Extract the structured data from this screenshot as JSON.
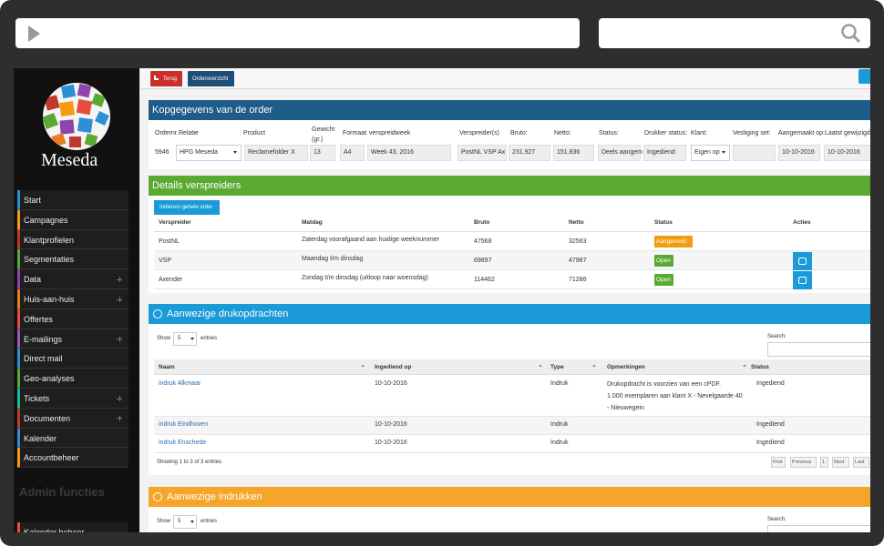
{
  "sidebar": {
    "logo": "Meseda",
    "menu": [
      {
        "label": "Start",
        "color": "#2d8fd5",
        "expandable": false
      },
      {
        "label": "Campagnes",
        "color": "#f39c12",
        "expandable": false
      },
      {
        "label": "Klantprofielen",
        "color": "#c0392b",
        "expandable": false
      },
      {
        "label": "Segmentaties",
        "color": "#5aaa32",
        "expandable": false
      },
      {
        "label": "Data",
        "color": "#8e44ad",
        "expandable": true
      },
      {
        "label": "Huis-aan-huis",
        "color": "#e67e22",
        "expandable": true
      },
      {
        "label": "Offertes",
        "color": "#e74c3c",
        "expandable": false
      },
      {
        "label": "E-mailings",
        "color": "#9b59b6",
        "expandable": true
      },
      {
        "label": "Direct mail",
        "color": "#2d8fd5",
        "expandable": false
      },
      {
        "label": "Geo-analyses",
        "color": "#5aaa32",
        "expandable": false
      },
      {
        "label": "Tickets",
        "color": "#1abc9c",
        "expandable": true
      },
      {
        "label": "Documenten",
        "color": "#c0392b",
        "expandable": true
      },
      {
        "label": "Kalender",
        "color": "#2d8fd5",
        "expandable": false
      },
      {
        "label": "Accountbeheer",
        "color": "#f39c12",
        "expandable": false
      }
    ],
    "section_title": "Admin functies",
    "admin_menu": [
      {
        "label": "Kalender beheer",
        "color": "#e74c3c"
      }
    ]
  },
  "toolbar": {
    "back": "Terug",
    "overview": "Orderoverzicht"
  },
  "order_header": {
    "title": "Kopgegevens van de order",
    "color": "#1f5c8a",
    "fields": [
      {
        "label": "Ordernr.",
        "value": "5946",
        "input": "plain"
      },
      {
        "label": "Relatie",
        "value": "HPG Meseda",
        "input": "select"
      },
      {
        "label": "Product",
        "value": "Reclamefolder X",
        "input": "text"
      },
      {
        "label": "Gewicht (gr.)",
        "value": "13",
        "input": "text"
      },
      {
        "label": "Formaat",
        "value": "A4",
        "input": "text"
      },
      {
        "label": "verspreidweek",
        "value": "Week 43, 2016",
        "input": "text"
      },
      {
        "label": "Verspreider(s)",
        "value": "PostNL VSP Ax",
        "input": "text"
      },
      {
        "label": "Bruto:",
        "value": "231.927",
        "input": "text"
      },
      {
        "label": "Netto:",
        "value": "151.836",
        "input": "text"
      },
      {
        "label": "Status:",
        "value": "Deels aangem",
        "input": "text"
      },
      {
        "label": "Drukker status:",
        "value": "Ingediend",
        "input": "text"
      },
      {
        "label": "Klant:",
        "value": "Eigen op",
        "input": "select"
      },
      {
        "label": "Vestiging set:",
        "value": null,
        "input": "text"
      },
      {
        "label": "Aangemaakt op:",
        "value": "10-10-2016",
        "input": "text"
      },
      {
        "label": "Laatst gewijzigd:",
        "value": "10-10-2016",
        "input": "text"
      }
    ]
  },
  "distributors": {
    "title": "Details verspreiders",
    "color": "#5aaa32",
    "submit_button": "Indienen gehele order",
    "columns": [
      "Verspreider",
      "Matdag",
      "Bruto",
      "Netto",
      "Status",
      "Acties"
    ],
    "rows": [
      {
        "name": "PostNL",
        "day": "Zaterdag voorafgaand aan huidige weeknummer",
        "gross": "47568",
        "net": "32563",
        "status": "Aangemeld",
        "status_color": "#f39c12",
        "action": false
      },
      {
        "name": "VSP",
        "day": "Maandag t/m dinsdag",
        "gross": "69897",
        "net": "47987",
        "status": "Open",
        "status_color": "#5aaa32",
        "action": true
      },
      {
        "name": "Axender",
        "day": "Zondag t/m dinsdag (uitloop naar woensdag)",
        "gross": "114462",
        "net": "71286",
        "status": "Open",
        "status_color": "#5aaa32",
        "action": true
      }
    ]
  },
  "print_jobs": {
    "title": "Aanwezige drukopdrachten",
    "color": "#1a9ad6",
    "length_before": "Show",
    "page_length": "5",
    "length_after": "entries",
    "search_label": "Search:",
    "columns": [
      "Naam",
      "Ingediend op",
      "Type",
      "Opmerkingen",
      "Status"
    ],
    "rows": [
      {
        "name": "indruk Alkmaar",
        "submitted": "10-10-2016",
        "type": "Indruk",
        "remarks": [
          "Drukopdracht is voorzien van een cPDF.",
          "1.000 exemplaren aan klant X - Nevelgaarde 40 - Nieuwegein"
        ],
        "status": "Ingediend"
      },
      {
        "name": "indruk Eindhoven",
        "submitted": "10-10-2016",
        "type": "Indruk",
        "remarks": null,
        "status": "Ingediend"
      },
      {
        "name": "indruk Enschede",
        "submitted": "10-10-2016",
        "type": "Indruk",
        "remarks": null,
        "status": "Ingediend"
      }
    ],
    "info": "Showing 1 to 3 of 3 entries",
    "pagination": [
      "First",
      "Previous",
      "1",
      "Next",
      "Last"
    ]
  },
  "prints": {
    "title": "Aanwezige indrukken",
    "color": "#f5a52a",
    "length_before": "Show",
    "page_length": "5",
    "length_after": "entries",
    "search_label": "Search:"
  }
}
